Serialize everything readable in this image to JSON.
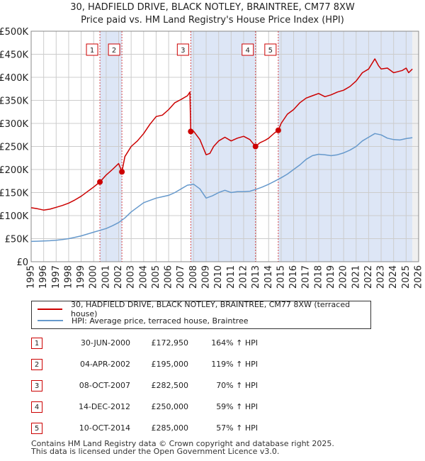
{
  "title": {
    "line1": "30, HADFIELD DRIVE, BLACK NOTLEY, BRAINTREE, CM77 8XW",
    "line2": "Price paid vs. HM Land Registry's House Price Index (HPI)"
  },
  "colors": {
    "property": "#cc0000",
    "hpi": "#6699cc",
    "band": "#dde6f6",
    "grid": "#cccccc"
  },
  "legend": {
    "property": "30, HADFIELD DRIVE, BLACK NOTLEY, BRAINTREE, CM77 8XW (terraced house)",
    "hpi": "HPI: Average price, terraced house, Braintree"
  },
  "sales": [
    {
      "num": "1",
      "date": "30-JUN-2000",
      "price": "£172,950",
      "hpi": "164% ↑ HPI"
    },
    {
      "num": "2",
      "date": "04-APR-2002",
      "price": "£195,000",
      "hpi": "119% ↑ HPI"
    },
    {
      "num": "3",
      "date": "08-OCT-2007",
      "price": "£282,500",
      "hpi": "70% ↑ HPI"
    },
    {
      "num": "4",
      "date": "14-DEC-2012",
      "price": "£250,000",
      "hpi": "59% ↑ HPI"
    },
    {
      "num": "5",
      "date": "10-OCT-2014",
      "price": "£285,000",
      "hpi": "57% ↑ HPI"
    }
  ],
  "footer": {
    "line1": "Contains HM Land Registry data © Crown copyright and database right 2025.",
    "line2": "This data is licensed under the Open Government Licence v3.0."
  },
  "chart_data": {
    "type": "line",
    "title": "30, HADFIELD DRIVE, BLACK NOTLEY, BRAINTREE, CM77 8XW — Price paid vs. HM Land Registry's House Price Index (HPI)",
    "xlabel": "",
    "ylabel": "",
    "xlim": [
      1995,
      2026
    ],
    "ylim": [
      0,
      500000
    ],
    "yticks": [
      0,
      50000,
      100000,
      150000,
      200000,
      250000,
      300000,
      350000,
      400000,
      450000,
      500000
    ],
    "ytick_labels": [
      "£0",
      "£50K",
      "£100K",
      "£150K",
      "£200K",
      "£250K",
      "£300K",
      "£350K",
      "£400K",
      "£450K",
      "£500K"
    ],
    "xticks": [
      1995,
      1996,
      1997,
      1998,
      1999,
      2000,
      2001,
      2002,
      2003,
      2004,
      2005,
      2006,
      2007,
      2008,
      2009,
      2010,
      2011,
      2012,
      2013,
      2014,
      2015,
      2016,
      2017,
      2018,
      2019,
      2020,
      2021,
      2022,
      2023,
      2024,
      2025,
      2026
    ],
    "grid": true,
    "legend_position": "bottom",
    "shaded_bands": [
      [
        2000.5,
        2002.26
      ],
      [
        2007.77,
        2012.95
      ],
      [
        2014.77,
        2025.5
      ]
    ],
    "sale_markers": [
      {
        "label": "1",
        "x": 2000.5,
        "y": 172950
      },
      {
        "label": "2",
        "x": 2002.26,
        "y": 195000
      },
      {
        "label": "3",
        "x": 2007.77,
        "y": 282500
      },
      {
        "label": "4",
        "x": 2012.95,
        "y": 250000
      },
      {
        "label": "5",
        "x": 2014.77,
        "y": 285000
      }
    ],
    "series": [
      {
        "name": "30, HADFIELD DRIVE, BLACK NOTLEY, BRAINTREE, CM77 8XW (terraced house)",
        "x": [
          1995,
          1995.5,
          1996,
          1996.5,
          1997,
          1997.5,
          1998,
          1998.5,
          1999,
          1999.5,
          2000,
          2000.5,
          2001,
          2001.5,
          2002,
          2002.26,
          2002.5,
          2003,
          2003.5,
          2004,
          2004.5,
          2005,
          2005.5,
          2006,
          2006.5,
          2007,
          2007.5,
          2007.7,
          2007.77,
          2008,
          2008.5,
          2009,
          2009.3,
          2009.6,
          2010,
          2010.5,
          2011,
          2011.5,
          2012,
          2012.5,
          2012.95,
          2013.3,
          2013.7,
          2014,
          2014.5,
          2014.77,
          2015,
          2015.5,
          2016,
          2016.5,
          2017,
          2017.5,
          2018,
          2018.5,
          2019,
          2019.5,
          2020,
          2020.5,
          2021,
          2021.5,
          2022,
          2022.5,
          2022.8,
          2023,
          2023.5,
          2024,
          2024.3,
          2024.7,
          2025,
          2025.2,
          2025.5
        ],
        "y": [
          117000,
          115000,
          112000,
          114000,
          118000,
          122000,
          127000,
          134000,
          142000,
          152000,
          162000,
          172950,
          188000,
          200000,
          213000,
          195000,
          228000,
          250000,
          262000,
          278000,
          298000,
          315000,
          318000,
          330000,
          345000,
          352000,
          360000,
          368000,
          282500,
          283000,
          265000,
          232000,
          235000,
          250000,
          262000,
          270000,
          262000,
          268000,
          272000,
          265000,
          250000,
          258000,
          263000,
          268000,
          280000,
          285000,
          300000,
          320000,
          330000,
          345000,
          355000,
          360000,
          365000,
          358000,
          362000,
          368000,
          372000,
          380000,
          392000,
          410000,
          418000,
          440000,
          425000,
          418000,
          420000,
          410000,
          412000,
          415000,
          420000,
          410000,
          418000
        ]
      },
      {
        "name": "HPI: Average price, terraced house, Braintree",
        "x": [
          1995,
          1995.5,
          1996,
          1996.5,
          1997,
          1997.5,
          1998,
          1998.5,
          1999,
          1999.5,
          2000,
          2000.5,
          2001,
          2001.5,
          2002,
          2002.5,
          2003,
          2003.5,
          2004,
          2004.5,
          2005,
          2005.5,
          2006,
          2006.5,
          2007,
          2007.5,
          2008,
          2008.5,
          2009,
          2009.5,
          2010,
          2010.5,
          2011,
          2011.5,
          2012,
          2012.5,
          2013,
          2013.5,
          2014,
          2014.5,
          2015,
          2015.5,
          2016,
          2016.5,
          2017,
          2017.5,
          2018,
          2018.5,
          2019,
          2019.5,
          2020,
          2020.5,
          2021,
          2021.5,
          2022,
          2022.5,
          2023,
          2023.5,
          2024,
          2024.5,
          2025,
          2025.5
        ],
        "y": [
          44000,
          44500,
          45000,
          45500,
          46500,
          48000,
          50000,
          53000,
          56000,
          60000,
          64000,
          68000,
          72000,
          78000,
          85000,
          95000,
          108000,
          118000,
          128000,
          133000,
          138000,
          141000,
          144000,
          150000,
          158000,
          166000,
          168000,
          158000,
          138000,
          143000,
          150000,
          155000,
          150000,
          152000,
          152000,
          153000,
          157000,
          162000,
          168000,
          175000,
          182000,
          190000,
          200000,
          210000,
          222000,
          230000,
          233000,
          232000,
          230000,
          232000,
          236000,
          242000,
          250000,
          262000,
          270000,
          278000,
          275000,
          268000,
          265000,
          264000,
          267000,
          269000
        ]
      }
    ]
  }
}
